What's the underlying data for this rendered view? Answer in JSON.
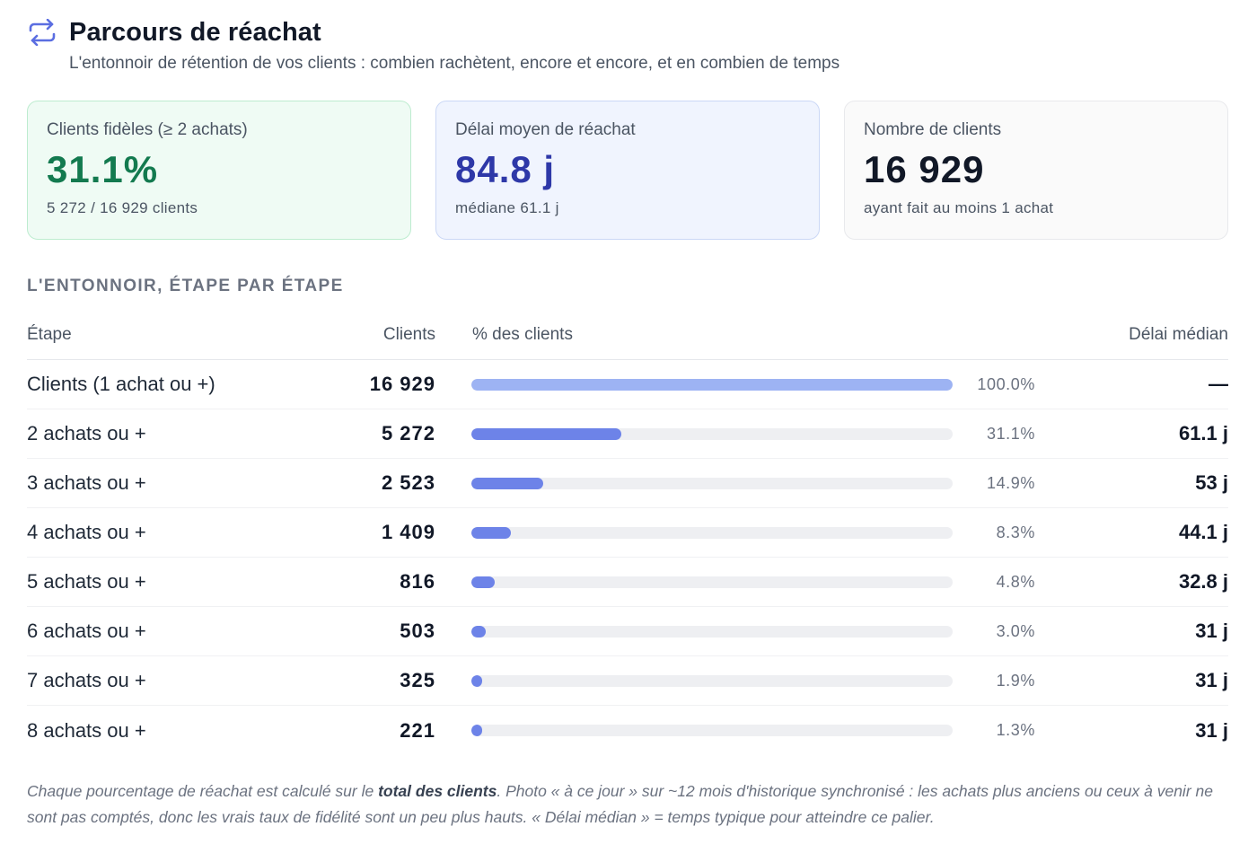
{
  "header": {
    "title": "Parcours de réachat",
    "subtitle": "L'entonnoir de rétention de vos clients : combien rachètent, encore et encore, et en combien de temps",
    "icon": "repeat-arrows-icon",
    "icon_color": "#5b6ee1"
  },
  "cards": [
    {
      "label": "Clients fidèles (≥ 2 achats)",
      "value": "31.1%",
      "sub": "5 272 / 16 929 clients",
      "color": "#137a4f"
    },
    {
      "label": "Délai moyen de réachat",
      "value": "84.8 j",
      "sub": "médiane 61.1 j",
      "color": "#2e38a8"
    },
    {
      "label": "Nombre de clients",
      "value": "16 929",
      "sub": "ayant fait au moins 1 achat",
      "color": "#111827"
    }
  ],
  "section_title": "L'ENTONNOIR, ÉTAPE PAR ÉTAPE",
  "table": {
    "headers": {
      "step": "Étape",
      "clients": "Clients",
      "pct": "% des clients",
      "delay": "Délai médian"
    },
    "rows": [
      {
        "step": "Clients (1 achat ou +)",
        "clients": "16 929",
        "pct_label": "100.0%",
        "pct": 100.0,
        "delay": "—",
        "bar_color": "#9db3f3"
      },
      {
        "step": "2 achats ou +",
        "clients": "5 272",
        "pct_label": "31.1%",
        "pct": 31.1,
        "delay": "61.1 j",
        "bar_color": "#6d83e8"
      },
      {
        "step": "3 achats ou +",
        "clients": "2 523",
        "pct_label": "14.9%",
        "pct": 14.9,
        "delay": "53 j",
        "bar_color": "#6d83e8"
      },
      {
        "step": "4 achats ou +",
        "clients": "1 409",
        "pct_label": "8.3%",
        "pct": 8.3,
        "delay": "44.1 j",
        "bar_color": "#6d83e8"
      },
      {
        "step": "5 achats ou +",
        "clients": "816",
        "pct_label": "4.8%",
        "pct": 4.8,
        "delay": "32.8 j",
        "bar_color": "#6d83e8"
      },
      {
        "step": "6 achats ou +",
        "clients": "503",
        "pct_label": "3.0%",
        "pct": 3.0,
        "delay": "31 j",
        "bar_color": "#6d83e8"
      },
      {
        "step": "7 achats ou +",
        "clients": "325",
        "pct_label": "1.9%",
        "pct": 1.9,
        "delay": "31 j",
        "bar_color": "#6d83e8"
      },
      {
        "step": "8 achats ou +",
        "clients": "221",
        "pct_label": "1.3%",
        "pct": 1.3,
        "delay": "31 j",
        "bar_color": "#6d83e8"
      }
    ]
  },
  "footnote": {
    "part1": "Chaque pourcentage de réachat est calculé sur le ",
    "bold": "total des clients",
    "part2": ". Photo « à ce jour » sur ~12 mois d'historique synchronisé : les achats plus anciens ou ceux à venir ne sont pas comptés, donc les vrais taux de fidélité sont un peu plus hauts. « Délai médian » = temps typique pour atteindre ce palier."
  }
}
